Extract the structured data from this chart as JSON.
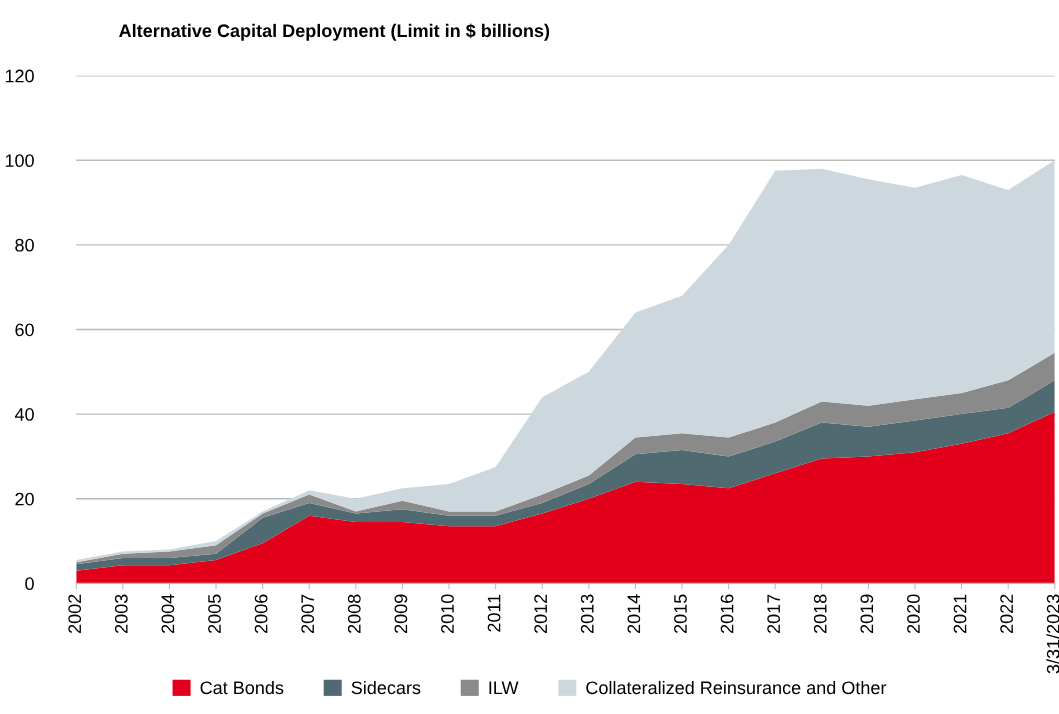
{
  "chart_data": {
    "type": "area",
    "stacked": true,
    "title": "Alternative Capital Deployment (Limit in $ billions)",
    "categories": [
      "2002",
      "2003",
      "2004",
      "2005",
      "2006",
      "2007",
      "2008",
      "2009",
      "2010",
      "2011",
      "2012",
      "2013",
      "2014",
      "2015",
      "2016",
      "2017",
      "2018",
      "2019",
      "2020",
      "2021",
      "2022",
      "3/31/2023"
    ],
    "series": [
      {
        "name": "Cat Bonds",
        "color": "#e3001b",
        "values": [
          3,
          4.3,
          4.3,
          5.5,
          9.5,
          16,
          14.5,
          14.5,
          13.5,
          13.5,
          16.5,
          20,
          24,
          23.5,
          22.5,
          26,
          29.5,
          30,
          31,
          33,
          35.5,
          40.5
        ]
      },
      {
        "name": "Sidecars",
        "color": "#4f6a70",
        "values": [
          1.5,
          1.7,
          1.7,
          1.5,
          6,
          3,
          2,
          3,
          2.5,
          2.5,
          2.5,
          3.5,
          6.5,
          8,
          7.5,
          7.5,
          8.5,
          7,
          7.5,
          7,
          6,
          7.5
        ]
      },
      {
        "name": "ILW",
        "color": "#8a8a8a",
        "values": [
          0.5,
          1,
          1.5,
          2,
          1,
          2,
          0.5,
          2,
          1,
          1,
          2,
          2,
          4,
          4,
          4.5,
          4.5,
          5,
          5,
          5,
          5,
          6.5,
          6.5
        ]
      },
      {
        "name": "Collateralized Reinsurance and Other",
        "color": "#cdd8de",
        "values": [
          0.5,
          0.5,
          0.5,
          1,
          0.5,
          1,
          3,
          3,
          6.5,
          10.5,
          23,
          24.5,
          29.5,
          32.5,
          45.5,
          59.5,
          55,
          53.5,
          50,
          51.5,
          45,
          45.5
        ]
      }
    ],
    "ylim": [
      0,
      120
    ],
    "yticks": [
      0,
      20,
      40,
      60,
      80,
      100,
      120
    ],
    "grid": "y",
    "legend": "bottom"
  }
}
